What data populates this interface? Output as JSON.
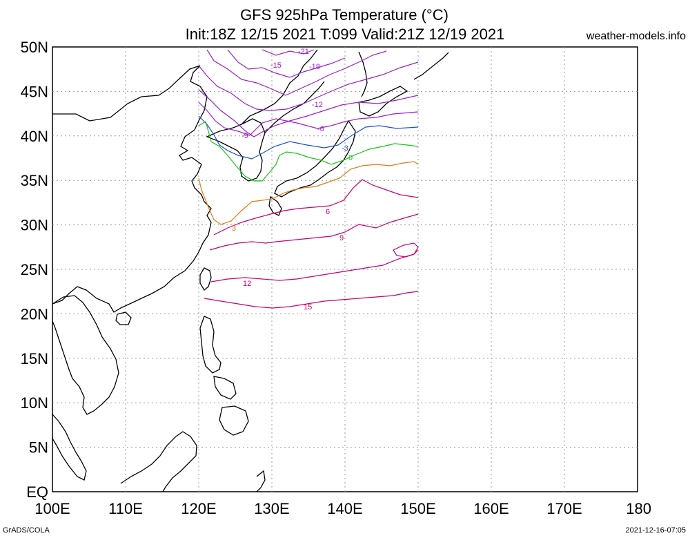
{
  "header": {
    "title": "GFS 925hPa Temperature (°C)",
    "subtitle": "Init:18Z 12/15 2021 T:099 Valid:21Z 12/19 2021",
    "site": "weather-models.info"
  },
  "footer": {
    "left": "GrADS/COLA",
    "right": "2021-12-16-07:05"
  },
  "axes": {
    "lon_labels": [
      "100E",
      "110E",
      "120E",
      "130E",
      "140E",
      "150E",
      "160E",
      "170E",
      "180"
    ],
    "lat_labels": [
      "50N",
      "45N",
      "40N",
      "35N",
      "30N",
      "25N",
      "20N",
      "15N",
      "10N",
      "5N",
      "EQ"
    ],
    "lon_range": [
      100,
      180
    ],
    "lat_range": [
      0,
      50
    ],
    "grid": true
  },
  "contours": [
    {
      "value": "-21",
      "color": "#9b1fcf"
    },
    {
      "value": "-18",
      "color": "#9b1fcf"
    },
    {
      "value": "-15",
      "color": "#9b1fcf"
    },
    {
      "value": "-12",
      "color": "#9b1fcf"
    },
    {
      "value": "-9",
      "color": "#9b1fcf"
    },
    {
      "value": "-6",
      "color": "#9b1fcf"
    },
    {
      "value": "-3",
      "color": "#1a4fd6"
    },
    {
      "value": "0",
      "color": "#16c416"
    },
    {
      "value": "3",
      "color": "#e07a14"
    },
    {
      "value": "6",
      "color": "#c8006e"
    },
    {
      "value": "9",
      "color": "#c8006e"
    },
    {
      "value": "12",
      "color": "#c8006e"
    },
    {
      "value": "15",
      "color": "#c8006e"
    }
  ],
  "colors": {
    "coastline": "#000000",
    "grid": "#999999"
  }
}
